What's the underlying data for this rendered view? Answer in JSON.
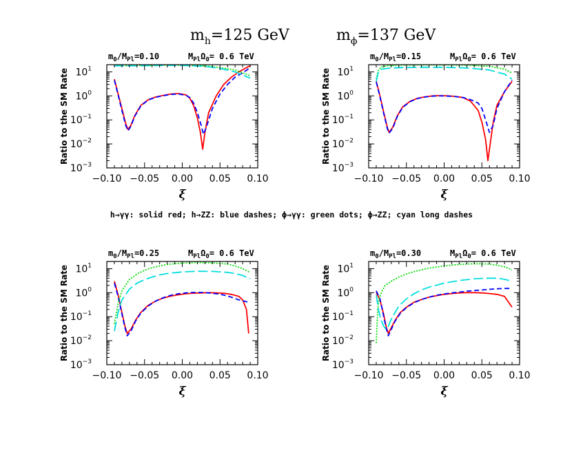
{
  "figure": {
    "title_left_base": "m",
    "title_left_sub": "h",
    "title_left_rest": "=125 GeV",
    "title_right_base": "m",
    "title_right_sub": "ϕ",
    "title_right_rest": "=137 GeV",
    "legend_text": "h→γγ: solid red; h→ZZ: blue dashes; ϕ→γγ: green dots; ϕ→ZZ; cyan long dashes"
  },
  "colors": {
    "h_gg": "#ff0000",
    "h_zz": "#0000ff",
    "phi_gg": "#00dd00",
    "phi_zz": "#00dddd"
  },
  "chart_data": [
    {
      "type": "line",
      "title_a": "m",
      "title_a_sub": "0",
      "title_b": "/M",
      "title_b_sub": "Pl",
      "title_c": "=0.10",
      "title_d": "M",
      "title_d_sub": "Pl",
      "title_e": "Ω",
      "title_e_sub": "0",
      "title_f": "= 0.6 TeV",
      "xlabel": "ξ",
      "ylabel": "Ratio to the SM Rate",
      "xlim": [
        -0.1,
        0.1
      ],
      "ylim_log10": [
        -3,
        1.3
      ],
      "log_y": true,
      "xticks": [
        "−0.10",
        "−0.05",
        "0.00",
        "0.05",
        "0.10"
      ],
      "yticks": [
        {
          "base": "10",
          "exp": "−3"
        },
        {
          "base": "10",
          "exp": "−2"
        },
        {
          "base": "10",
          "exp": "−1"
        },
        {
          "base": "10",
          "exp": "0"
        },
        {
          "base": "10",
          "exp": "1"
        }
      ],
      "series": [
        {
          "key": "h_gg",
          "style": "solid",
          "x": [
            -0.09,
            -0.085,
            -0.08,
            -0.075,
            -0.072,
            -0.068,
            -0.063,
            -0.055,
            -0.045,
            -0.035,
            -0.025,
            -0.015,
            -0.005,
            0.005,
            0.01,
            0.015,
            0.02,
            0.024,
            0.027,
            0.03,
            0.035,
            0.045,
            0.055,
            0.065,
            0.075,
            0.085,
            0.09
          ],
          "y": [
            5,
            1.2,
            0.3,
            0.07,
            0.04,
            0.06,
            0.15,
            0.4,
            0.7,
            0.9,
            1.05,
            1.2,
            1.25,
            1.1,
            0.8,
            0.4,
            0.12,
            0.03,
            0.006,
            0.03,
            0.2,
            1,
            3,
            6,
            10,
            15,
            18
          ]
        },
        {
          "key": "h_zz",
          "style": "dash",
          "x": [
            -0.09,
            -0.085,
            -0.08,
            -0.075,
            -0.072,
            -0.068,
            -0.063,
            -0.055,
            -0.045,
            -0.035,
            -0.025,
            -0.015,
            -0.005,
            0.005,
            0.01,
            0.015,
            0.02,
            0.025,
            0.028,
            0.032,
            0.04,
            0.05,
            0.06,
            0.07,
            0.08,
            0.09
          ],
          "y": [
            4.5,
            1.1,
            0.25,
            0.06,
            0.035,
            0.055,
            0.14,
            0.38,
            0.68,
            0.88,
            1.02,
            1.15,
            1.2,
            1.05,
            0.85,
            0.5,
            0.2,
            0.06,
            0.025,
            0.05,
            0.3,
            1.2,
            3,
            6,
            9,
            15
          ]
        },
        {
          "key": "phi_gg",
          "style": "dot",
          "x": [
            -0.09,
            -0.06,
            -0.03,
            0.0,
            0.03,
            0.05,
            0.07,
            0.09
          ],
          "y": [
            18,
            18.5,
            19,
            19,
            18,
            15,
            12,
            7
          ]
        },
        {
          "key": "phi_zz",
          "style": "longdash",
          "x": [
            -0.09,
            -0.06,
            -0.03,
            0.0,
            0.03,
            0.05,
            0.07,
            0.09
          ],
          "y": [
            18,
            18,
            18.5,
            18.5,
            17,
            14,
            10,
            5.5
          ]
        }
      ]
    },
    {
      "type": "line",
      "title_a": "m",
      "title_a_sub": "0",
      "title_b": "/M",
      "title_b_sub": "Pl",
      "title_c": "=0.15",
      "title_d": "M",
      "title_d_sub": "Pl",
      "title_e": "Ω",
      "title_e_sub": "0",
      "title_f": "= 0.6 TeV",
      "xlabel": "ξ",
      "ylabel": "Ratio to the SM Rate",
      "xlim": [
        -0.1,
        0.1
      ],
      "ylim_log10": [
        -3,
        1.3
      ],
      "log_y": true,
      "xticks": [
        "−0.10",
        "−0.05",
        "0.00",
        "0.05",
        "0.10"
      ],
      "yticks": [
        {
          "base": "10",
          "exp": "−3"
        },
        {
          "base": "10",
          "exp": "−2"
        },
        {
          "base": "10",
          "exp": "−1"
        },
        {
          "base": "10",
          "exp": "0"
        },
        {
          "base": "10",
          "exp": "1"
        }
      ],
      "series": [
        {
          "key": "h_gg",
          "style": "solid",
          "x": [
            -0.09,
            -0.085,
            -0.08,
            -0.075,
            -0.073,
            -0.068,
            -0.062,
            -0.055,
            -0.045,
            -0.035,
            -0.025,
            -0.015,
            -0.005,
            0.005,
            0.015,
            0.025,
            0.035,
            0.045,
            0.05,
            0.055,
            0.058,
            0.061,
            0.065,
            0.07,
            0.08,
            0.09
          ],
          "y": [
            4,
            1,
            0.2,
            0.045,
            0.03,
            0.05,
            0.15,
            0.35,
            0.6,
            0.8,
            0.92,
            1,
            1.02,
            1,
            0.95,
            0.85,
            0.6,
            0.25,
            0.08,
            0.015,
            0.002,
            0.01,
            0.08,
            0.4,
            1.5,
            4
          ]
        },
        {
          "key": "h_zz",
          "style": "dash",
          "x": [
            -0.09,
            -0.085,
            -0.08,
            -0.075,
            -0.073,
            -0.068,
            -0.062,
            -0.055,
            -0.045,
            -0.035,
            -0.025,
            -0.015,
            -0.005,
            0.005,
            0.015,
            0.025,
            0.035,
            0.045,
            0.05,
            0.055,
            0.06,
            0.065,
            0.07,
            0.08,
            0.09
          ],
          "y": [
            3.8,
            0.9,
            0.18,
            0.04,
            0.028,
            0.045,
            0.14,
            0.33,
            0.58,
            0.78,
            0.9,
            0.98,
            1,
            0.98,
            0.93,
            0.85,
            0.7,
            0.5,
            0.3,
            0.1,
            0.03,
            0.06,
            0.3,
            1.5,
            4.5
          ]
        },
        {
          "key": "phi_gg",
          "style": "dot",
          "x": [
            -0.09,
            -0.087,
            -0.083,
            -0.075,
            -0.06,
            -0.03,
            0.0,
            0.03,
            0.06,
            0.08,
            0.09
          ],
          "y": [
            5,
            12,
            16,
            18,
            19,
            19.5,
            19.5,
            19,
            17,
            13,
            9
          ]
        },
        {
          "key": "phi_zz",
          "style": "longdash",
          "x": [
            -0.09,
            -0.087,
            -0.083,
            -0.075,
            -0.06,
            -0.03,
            0.0,
            0.03,
            0.06,
            0.08,
            0.09
          ],
          "y": [
            4,
            10,
            13,
            14,
            15,
            15.5,
            15.5,
            14.5,
            12,
            8,
            5
          ]
        }
      ]
    },
    {
      "type": "line",
      "title_a": "m",
      "title_a_sub": "0",
      "title_b": "/M",
      "title_b_sub": "Pl",
      "title_c": "=0.25",
      "title_d": "M",
      "title_d_sub": "Pl",
      "title_e": "Ω",
      "title_e_sub": "0",
      "title_f": "= 0.6 TeV",
      "xlabel": "ξ",
      "ylabel": "Ratio to the SM Rate",
      "xlim": [
        -0.1,
        0.1
      ],
      "ylim_log10": [
        -3,
        1.3
      ],
      "log_y": true,
      "xticks": [
        "−0.10",
        "−0.05",
        "0.00",
        "0.05",
        "0.10"
      ],
      "yticks": [
        {
          "base": "10",
          "exp": "−3"
        },
        {
          "base": "10",
          "exp": "−2"
        },
        {
          "base": "10",
          "exp": "−1"
        },
        {
          "base": "10",
          "exp": "0"
        },
        {
          "base": "10",
          "exp": "1"
        }
      ],
      "series": [
        {
          "key": "h_gg",
          "style": "solid",
          "x": [
            -0.09,
            -0.085,
            -0.08,
            -0.076,
            -0.073,
            -0.068,
            -0.062,
            -0.055,
            -0.045,
            -0.035,
            -0.025,
            -0.015,
            -0.005,
            0.005,
            0.015,
            0.025,
            0.035,
            0.045,
            0.055,
            0.065,
            0.075,
            0.08,
            0.085,
            0.088
          ],
          "y": [
            3,
            0.8,
            0.15,
            0.04,
            0.02,
            0.03,
            0.07,
            0.15,
            0.3,
            0.45,
            0.6,
            0.72,
            0.82,
            0.9,
            0.95,
            0.98,
            1,
            0.98,
            0.95,
            0.85,
            0.7,
            0.5,
            0.2,
            0.02
          ]
        },
        {
          "key": "h_zz",
          "style": "dash",
          "x": [
            -0.09,
            -0.085,
            -0.08,
            -0.076,
            -0.073,
            -0.068,
            -0.062,
            -0.055,
            -0.045,
            -0.035,
            -0.025,
            -0.015,
            -0.005,
            0.005,
            0.015,
            0.025,
            0.035,
            0.045,
            0.055,
            0.065,
            0.075,
            0.085,
            0.09
          ],
          "y": [
            2.5,
            0.7,
            0.13,
            0.035,
            0.016,
            0.025,
            0.065,
            0.14,
            0.28,
            0.45,
            0.62,
            0.78,
            0.9,
            0.98,
            1.02,
            1.02,
            0.98,
            0.9,
            0.8,
            0.65,
            0.5,
            0.42,
            0.4
          ]
        },
        {
          "key": "phi_gg",
          "style": "dot",
          "x": [
            -0.09,
            -0.085,
            -0.08,
            -0.07,
            -0.06,
            -0.05,
            -0.04,
            -0.03,
            -0.02,
            0.0,
            0.02,
            0.04,
            0.06,
            0.07,
            0.08,
            0.09
          ],
          "y": [
            0.05,
            0.35,
            1.2,
            3.5,
            6,
            8.5,
            11,
            13,
            15,
            17,
            18,
            17.5,
            15.5,
            13,
            10,
            7
          ]
        },
        {
          "key": "phi_zz",
          "style": "longdash",
          "x": [
            -0.09,
            -0.085,
            -0.08,
            -0.07,
            -0.06,
            -0.05,
            -0.04,
            -0.03,
            -0.02,
            0.0,
            0.02,
            0.04,
            0.06,
            0.07,
            0.08,
            0.09
          ],
          "y": [
            0.025,
            0.15,
            0.5,
            1.4,
            2.5,
            3.5,
            4.5,
            5.5,
            6.3,
            7.3,
            7.8,
            7.7,
            7,
            6.3,
            5.2,
            3.8
          ]
        }
      ]
    },
    {
      "type": "line",
      "title_a": "m",
      "title_a_sub": "0",
      "title_b": "/M",
      "title_b_sub": "Pl",
      "title_c": "=0.30",
      "title_d": "M",
      "title_d_sub": "Pl",
      "title_e": "Ω",
      "title_e_sub": "0",
      "title_f": "= 0.6 TeV",
      "xlabel": "ξ",
      "ylabel": "Ratio to the SM Rate",
      "xlim": [
        -0.1,
        0.1
      ],
      "ylim_log10": [
        -3,
        1.3
      ],
      "log_y": true,
      "xticks": [
        "−0.10",
        "−0.05",
        "0.00",
        "0.05",
        "0.10"
      ],
      "yticks": [
        {
          "base": "10",
          "exp": "−3"
        },
        {
          "base": "10",
          "exp": "−2"
        },
        {
          "base": "10",
          "exp": "−1"
        },
        {
          "base": "10",
          "exp": "0"
        },
        {
          "base": "10",
          "exp": "1"
        }
      ],
      "series": [
        {
          "key": "h_gg",
          "style": "solid",
          "x": [
            -0.09,
            -0.085,
            -0.08,
            -0.077,
            -0.074,
            -0.07,
            -0.065,
            -0.058,
            -0.05,
            -0.04,
            -0.03,
            -0.02,
            -0.01,
            0.0,
            0.01,
            0.02,
            0.03,
            0.04,
            0.05,
            0.06,
            0.07,
            0.08,
            0.09
          ],
          "y": [
            1,
            0.5,
            0.12,
            0.04,
            0.02,
            0.035,
            0.07,
            0.15,
            0.25,
            0.4,
            0.52,
            0.65,
            0.75,
            0.85,
            0.92,
            0.98,
            1,
            1,
            0.98,
            0.92,
            0.85,
            0.7,
            0.25
          ]
        },
        {
          "key": "h_zz",
          "style": "dash",
          "x": [
            -0.09,
            -0.085,
            -0.08,
            -0.077,
            -0.074,
            -0.07,
            -0.065,
            -0.058,
            -0.05,
            -0.04,
            -0.03,
            -0.02,
            -0.01,
            0.0,
            0.01,
            0.02,
            0.03,
            0.04,
            0.05,
            0.06,
            0.07,
            0.08,
            0.09
          ],
          "y": [
            1.2,
            0.55,
            0.1,
            0.035,
            0.016,
            0.03,
            0.065,
            0.14,
            0.24,
            0.38,
            0.52,
            0.65,
            0.78,
            0.88,
            0.98,
            1.05,
            1.15,
            1.22,
            1.3,
            1.38,
            1.45,
            1.5,
            1.5
          ]
        },
        {
          "key": "phi_gg",
          "style": "dot",
          "x": [
            -0.09,
            -0.088,
            -0.086,
            -0.082,
            -0.078,
            -0.07,
            -0.06,
            -0.05,
            -0.04,
            -0.03,
            -0.02,
            0.0,
            0.02,
            0.04,
            0.06,
            0.07,
            0.08,
            0.09
          ],
          "y": [
            0.008,
            0.2,
            0.6,
            1.2,
            2,
            3,
            4.5,
            6,
            7.5,
            9,
            10.5,
            13,
            15,
            16,
            15.5,
            14,
            12,
            9
          ]
        },
        {
          "key": "phi_zz",
          "style": "longdash",
          "x": [
            -0.09,
            -0.087,
            -0.084,
            -0.08,
            -0.077,
            -0.074,
            -0.07,
            -0.065,
            -0.06,
            -0.05,
            -0.04,
            -0.03,
            -0.02,
            0.0,
            0.02,
            0.04,
            0.06,
            0.07,
            0.08,
            0.09
          ],
          "y": [
            0.8,
            0.2,
            0.08,
            0.04,
            0.03,
            0.04,
            0.08,
            0.15,
            0.28,
            0.55,
            0.9,
            1.3,
            1.7,
            2.5,
            3.2,
            3.8,
            4,
            4,
            3.6,
            3
          ]
        }
      ]
    }
  ]
}
